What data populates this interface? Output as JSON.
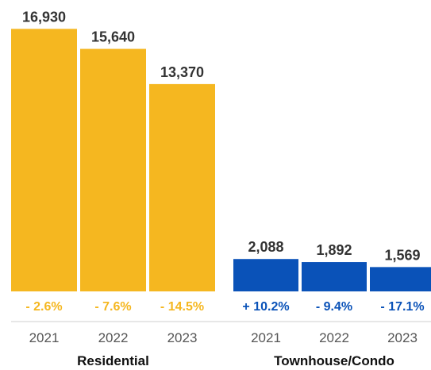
{
  "chart_data": {
    "type": "bar",
    "groups": [
      {
        "name": "Residential",
        "color": "#F5B720",
        "categories": [
          "2021",
          "2022",
          "2023"
        ],
        "values": [
          16930,
          15640,
          13370
        ],
        "value_labels": [
          "16,930",
          "15,640",
          "13,370"
        ],
        "changes": [
          "- 2.6%",
          "- 7.6%",
          "- 14.5%"
        ]
      },
      {
        "name": "Townhouse/Condo",
        "color": "#0A52B8",
        "categories": [
          "2021",
          "2022",
          "2023"
        ],
        "values": [
          2088,
          1892,
          1569
        ],
        "value_labels": [
          "2,088",
          "1,892",
          "1,569"
        ],
        "changes": [
          "+ 10.2%",
          "- 9.4%",
          "- 17.1%"
        ]
      }
    ],
    "title": "",
    "xlabel": "",
    "ylabel": "",
    "ylim": [
      0,
      17000
    ],
    "grid": false
  }
}
